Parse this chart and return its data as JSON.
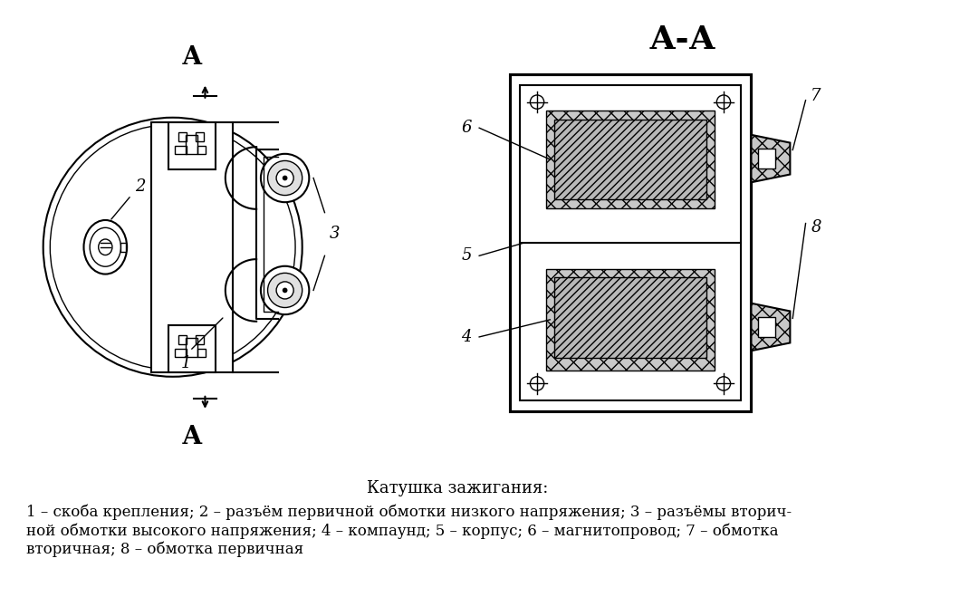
{
  "title_aa": "А-А",
  "caption_title": "Катушка зажигания:",
  "caption_text": "1 – скоба крепления; 2 – разъём первичной обмотки низкого напряжения; 3 – разъёмы вторич-\nной обмотки высокого напряжения; 4 – компаунд; 5 – корпус; 6 – магнитопровод; 7 – обмотка\nвторичная; 8 – обмотка первичная",
  "bg_color": "#ffffff",
  "line_color": "#000000",
  "hatch_color": "#888888",
  "light_fill": "#d8d8d8",
  "dark_fill": "#b0b0b0"
}
